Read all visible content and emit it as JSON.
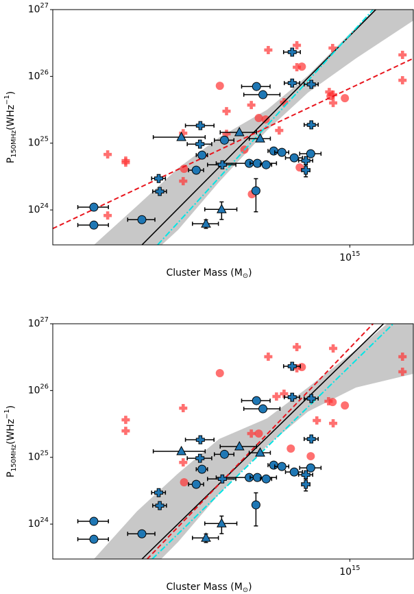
{
  "chart_data": [
    {
      "type": "scatter",
      "xlabel": "Cluster Mass (M_{⊙})",
      "ylabel": "P_{150MHz}(WHz^{−1})",
      "xscale": "log",
      "yscale": "log",
      "xlim": [
        150000000000000.0,
        1500000000000000.0
      ],
      "ylim": [
        3e+23,
        1e+27
      ],
      "xticks": [
        {
          "value": 1000000000000000.0,
          "label": "10^{15}"
        }
      ],
      "yticks": [
        {
          "value": 1e+24,
          "label": "10^{24}"
        },
        {
          "value": 1e+25,
          "label": "10^{25}"
        },
        {
          "value": 1e+26,
          "label": "10^{26}"
        },
        {
          "value": 1e+27,
          "label": "10^{27}"
        }
      ],
      "band": {
        "color": "#c8c8c8",
        "x": [
          195000000000000.0,
          257000000000000.0,
          334000000000000.0,
          434000000000000.0,
          589000000000000.0,
          765000000000000.0,
          1040000000000000.0,
          1500000000000000.0
        ],
        "lower": [
          4.19e+22,
          1.37e+23,
          5.03e+23,
          2.63e+24,
          1.55e+25,
          5.7e+25,
          1.86e+26,
          6.85e+26
        ],
        "upper": [
          2.99e+23,
          1.15e+24,
          4.23e+24,
          1.22e+25,
          3.16e+25,
          1.03e+26,
          5.41e+26,
          3.59e+27
        ]
      },
      "series": [
        {
          "kind": "marker",
          "marker": "o",
          "color": "#ff3333",
          "alpha": 0.7,
          "x": [
            436000000000000.0,
            559000000000000.0,
            584000000000000.0,
            510000000000000.0,
            535000000000000.0,
            347000000000000.0,
            726000000000000.0,
            969000000000000.0,
            884000000000000.0,
            736000000000000.0
          ],
          "values": [
            7.23e+25,
            2.38e+25,
            2.27e+25,
            8e+24,
            1.72e+24,
            4.13e+24,
            4.33e+24,
            4.72e+25,
            5.07e+25,
            1.4e+26
          ]
        },
        {
          "kind": "marker",
          "marker": "P",
          "color": "#ff3333",
          "alpha": 0.7,
          "x": [
            213000000000000.0,
            239000000000000.0,
            239000000000000.0,
            213000000000000.0,
            345000000000000.0,
            345000000000000.0,
            455000000000000.0,
            455000000000000.0,
            533000000000000.0,
            594000000000000.0,
            713000000000000.0,
            657000000000000.0,
            637000000000000.0,
            896000000000000.0,
            899000000000000.0,
            899000000000000.0,
            877000000000000.0,
            713000000000000.0,
            1400000000000000.0,
            1400000000000000.0
          ],
          "values": [
            6.78e+24,
            5.48e+24,
            5.11e+24,
            8.26e+23,
            1.41e+25,
            2.7e+24,
            3.01e+25,
            1.38e+25,
            3.72e+25,
            2.48e+26,
            2.92e+26,
            4.1e+25,
            1.55e+25,
            2.66e+26,
            5.32e+25,
            4e+25,
            5.84e+25,
            1.37e+26,
            2.1e+26,
            8.74e+25
          ]
        },
        {
          "kind": "line",
          "style": "solid",
          "color": "#000000",
          "x": [
            265000000000000.0,
            1180000000000000.0
          ],
          "values": [
            2.99e+23,
            1e+27
          ]
        },
        {
          "kind": "line",
          "style": "dashdot",
          "color": "#00e5e5",
          "x": [
            293000000000000.0,
            1160000000000000.0
          ],
          "values": [
            3e+23,
            1e+27
          ]
        },
        {
          "kind": "line",
          "style": "dashed",
          "color": "#e8141c",
          "x": [
            150000000000000.0,
            1500000000000000.0
          ],
          "values": [
            5.26e+23,
            1.86e+26
          ]
        },
        {
          "kind": "marker",
          "marker": "o",
          "color": "#1f77b4",
          "edgecolor": "#000000",
          "x": [
            195000000000000.0,
            195000000000000.0,
            265000000000000.0,
            375000000000000.0,
            389000000000000.0,
            449000000000000.0,
            551000000000000.0,
            574000000000000.0,
            526000000000000.0,
            554000000000000.0,
            586000000000000.0,
            549000000000000.0,
            615000000000000.0,
            648000000000000.0,
            701000000000000.0,
            779000000000000.0
          ],
          "values": [
            1.1e+24,
            5.93e+23,
            7.16e+23,
            3.94e+24,
            6.63e+24,
            1.11e+25,
            7.06e+25,
            5.32e+25,
            4.99e+24,
            4.99e+24,
            4.75e+24,
            1.94e+24,
            7.64e+24,
            7.28e+24,
            6.03e+24,
            6.95e+24
          ],
          "xerr": [
            19000000000000.0,
            19000000000000.0,
            23000000000000.0,
            18000000000000.0,
            14000000000000.0,
            28000000000000.0,
            50000000000000.0,
            66000000000000.0,
            100000000000000.0,
            25000000000000.0,
            21000000000000.0,
            9700000000000.0,
            22000000000000.0,
            29000000000000.0,
            38000000000000.0,
            53000000000000.0
          ],
          "yerr": [
            null,
            null,
            null,
            4e+23,
            null,
            null,
            null,
            null,
            null,
            null,
            null,
            1e+24,
            null,
            null,
            null,
            null
          ]
        },
        {
          "kind": "marker",
          "marker": "P",
          "color": "#1f77b4",
          "edgecolor": "#000000",
          "x": [
            692000000000000.0,
            692000000000000.0,
            782000000000000.0,
            782000000000000.0,
            385000000000000.0,
            384000000000000.0,
            295000000000000.0,
            297000000000000.0,
            443000000000000.0,
            755000000000000.0,
            755000000000000.0
          ],
          "values": [
            2.31e+26,
            7.95e+25,
            7.59e+25,
            1.88e+25,
            1.83e+25,
            9.68e+24,
            2.96e+24,
            1.89e+24,
            4.75e+24,
            5.48e+24,
            3.94e+24
          ],
          "xerr": [
            37000000000000.0,
            34000000000000.0,
            35000000000000.0,
            35000000000000.0,
            35000000000000.0,
            30000000000000.0,
            13000000000000.0,
            13000000000000.0,
            40000000000000.0,
            34000000000000.0,
            20000000000000.0
          ],
          "yerr": [
            null,
            null,
            null,
            null,
            null,
            null,
            null,
            null,
            null,
            null,
            8e+23
          ]
        },
        {
          "kind": "marker",
          "marker": "^",
          "color": "#1f77b4",
          "edgecolor": "#000000",
          "x": [
            341000000000000.0,
            494000000000000.0,
            564000000000000.0,
            441000000000000.0,
            399000000000000.0
          ],
          "values": [
            1.23e+25,
            1.45e+25,
            1.17e+25,
            1.02e+24,
            6.21e+23
          ],
          "xerr": [
            56000000000000.0,
            57000000000000.0,
            38000000000000.0,
            45000000000000.0,
            33000000000000.0
          ],
          "yerr": [
            null,
            null,
            null,
            3e+23,
            9e+22
          ]
        }
      ]
    },
    {
      "type": "scatter",
      "xlabel": "Cluster Mass (M_{⊙})",
      "ylabel": "P_{150MHz}(WHz^{−1})",
      "xscale": "log",
      "yscale": "log",
      "xlim": [
        150000000000000.0,
        1500000000000000.0
      ],
      "ylim": [
        3e+23,
        1e+27
      ],
      "xticks": [
        {
          "value": 1000000000000000.0,
          "label": "10^{15}"
        }
      ],
      "yticks": [
        {
          "value": 1e+24,
          "label": "10^{24}"
        },
        {
          "value": 1e+25,
          "label": "10^{25}"
        },
        {
          "value": 1e+26,
          "label": "10^{26}"
        },
        {
          "value": 1e+27,
          "label": "10^{27}"
        }
      ],
      "band": {
        "color": "#c8c8c8",
        "x": [
          195000000000000.0,
          257000000000000.0,
          334000000000000.0,
          434000000000000.0,
          589000000000000.0,
          765000000000000.0,
          1040000000000000.0,
          1500000000000000.0
        ],
        "lower": [
          3.99e+22,
          1.3e+23,
          5.4e+23,
          2.83e+24,
          1.48e+25,
          4.83e+25,
          1.11e+26,
          1.78e+26
        ],
        "upper": [
          2.99e+23,
          1.56e+24,
          5.75e+24,
          1.88e+25,
          3.82e+25,
          1.11e+26,
          4.07e+26,
          2.13e+27
        ]
      },
      "series": [
        {
          "kind": "marker",
          "marker": "o",
          "color": "#ff3333",
          "alpha": 0.7,
          "x": [
            436000000000000.0,
            736000000000000.0,
            559000000000000.0,
            686000000000000.0,
            347000000000000.0,
            779000000000000.0,
            969000000000000.0,
            896000000000000.0
          ],
          "values": [
            1.82e+26,
            2.25e+26,
            2.27e+25,
            1.35e+25,
            4.23e+24,
            1.04e+25,
            5.98e+25,
            6.73e+25
          ]
        },
        {
          "kind": "marker",
          "marker": "P",
          "color": "#ff3333",
          "alpha": 0.7,
          "x": [
            239000000000000.0,
            239000000000000.0,
            345000000000000.0,
            345000000000000.0,
            594000000000000.0,
            713000000000000.0,
            713000000000000.0,
            657000000000000.0,
            899000000000000.0,
            899000000000000.0,
            873000000000000.0,
            810000000000000.0,
            1400000000000000.0,
            1400000000000000.0,
            533000000000000.0,
            626000000000000.0
          ],
          "values": [
            3.64e+25,
            2.49e+25,
            5.45e+25,
            8.39e+24,
            3.21e+26,
            4.48e+26,
            2.15e+26,
            8.95e+25,
            4.27e+26,
            3.23e+25,
            6.9e+25,
            3.56e+25,
            3.21e+26,
            1.91e+26,
            2.27e+25,
            8.14e+25
          ]
        },
        {
          "kind": "line",
          "style": "solid",
          "color": "#000000",
          "x": [
            265000000000000.0,
            1240000000000000.0
          ],
          "values": [
            2.99e+23,
            1e+27
          ]
        },
        {
          "kind": "line",
          "style": "dashdot",
          "color": "#00e5e5",
          "x": [
            283000000000000.0,
            1320000000000000.0
          ],
          "values": [
            2.99e+23,
            1e+27
          ]
        },
        {
          "kind": "line",
          "style": "dashed",
          "color": "#e8141c",
          "x": [
            274000000000000.0,
            1160000000000000.0
          ],
          "values": [
            2.99e+23,
            1e+27
          ]
        },
        {
          "kind": "marker",
          "marker": "o",
          "color": "#1f77b4",
          "edgecolor": "#000000",
          "x": [
            195000000000000.0,
            195000000000000.0,
            265000000000000.0,
            375000000000000.0,
            389000000000000.0,
            449000000000000.0,
            551000000000000.0,
            574000000000000.0,
            526000000000000.0,
            554000000000000.0,
            586000000000000.0,
            549000000000000.0,
            615000000000000.0,
            648000000000000.0,
            701000000000000.0,
            779000000000000.0
          ],
          "values": [
            1.1e+24,
            5.93e+23,
            7.16e+23,
            3.94e+24,
            6.63e+24,
            1.11e+25,
            7.06e+25,
            5.32e+25,
            4.99e+24,
            4.99e+24,
            4.75e+24,
            1.94e+24,
            7.64e+24,
            7.28e+24,
            6.03e+24,
            6.95e+24
          ],
          "xerr": [
            19000000000000.0,
            19000000000000.0,
            23000000000000.0,
            18000000000000.0,
            14000000000000.0,
            28000000000000.0,
            50000000000000.0,
            66000000000000.0,
            100000000000000.0,
            25000000000000.0,
            21000000000000.0,
            9700000000000.0,
            22000000000000.0,
            29000000000000.0,
            38000000000000.0,
            53000000000000.0
          ],
          "yerr": [
            null,
            null,
            null,
            4e+23,
            null,
            null,
            null,
            null,
            null,
            null,
            null,
            1e+24,
            null,
            null,
            null,
            null
          ]
        },
        {
          "kind": "marker",
          "marker": "P",
          "color": "#1f77b4",
          "edgecolor": "#000000",
          "x": [
            692000000000000.0,
            692000000000000.0,
            782000000000000.0,
            782000000000000.0,
            385000000000000.0,
            384000000000000.0,
            295000000000000.0,
            297000000000000.0,
            443000000000000.0,
            755000000000000.0,
            755000000000000.0
          ],
          "values": [
            2.31e+26,
            7.95e+25,
            7.59e+25,
            1.88e+25,
            1.83e+25,
            9.68e+24,
            2.96e+24,
            1.89e+24,
            4.75e+24,
            5.48e+24,
            3.94e+24
          ],
          "xerr": [
            37000000000000.0,
            34000000000000.0,
            35000000000000.0,
            35000000000000.0,
            35000000000000.0,
            30000000000000.0,
            13000000000000.0,
            13000000000000.0,
            40000000000000.0,
            34000000000000.0,
            20000000000000.0
          ],
          "yerr": [
            null,
            null,
            null,
            null,
            null,
            null,
            null,
            null,
            null,
            null,
            8e+23
          ]
        },
        {
          "kind": "marker",
          "marker": "^",
          "color": "#1f77b4",
          "edgecolor": "#000000",
          "x": [
            341000000000000.0,
            494000000000000.0,
            564000000000000.0,
            441000000000000.0,
            399000000000000.0
          ],
          "values": [
            1.23e+25,
            1.45e+25,
            1.17e+25,
            1.02e+24,
            6.21e+23
          ],
          "xerr": [
            56000000000000.0,
            57000000000000.0,
            38000000000000.0,
            45000000000000.0,
            33000000000000.0
          ],
          "yerr": [
            null,
            null,
            null,
            3e+23,
            9e+22
          ]
        }
      ]
    }
  ]
}
